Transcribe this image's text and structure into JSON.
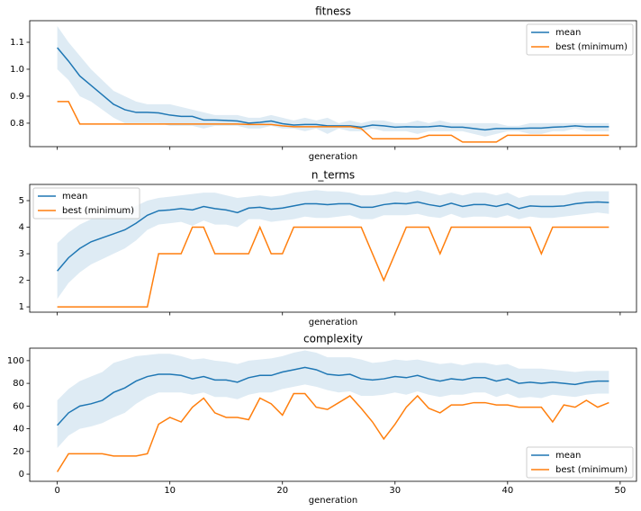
{
  "chart_data": [
    {
      "type": "line",
      "title": "fitness",
      "xlabel": "generation",
      "legend": "upper right",
      "show_xticklabels": false,
      "x": [
        0,
        1,
        2,
        3,
        4,
        5,
        6,
        7,
        8,
        9,
        10,
        11,
        12,
        13,
        14,
        15,
        16,
        17,
        18,
        19,
        20,
        21,
        22,
        23,
        24,
        25,
        26,
        27,
        28,
        29,
        30,
        31,
        32,
        33,
        34,
        35,
        36,
        37,
        38,
        39,
        40,
        41,
        42,
        43,
        44,
        45,
        46,
        47,
        48,
        49
      ],
      "xlim": [
        -2.45,
        51.45
      ],
      "xticks": [
        0,
        10,
        20,
        30,
        40,
        50
      ],
      "ylim": [
        0.713,
        1.18
      ],
      "yticks": [
        0.8,
        0.9,
        {
          "value": 1,
          "label": "1.0"
        },
        1.1
      ],
      "series": [
        {
          "name": "mean",
          "color": "#1f77b4",
          "values": [
            1.08,
            1.03,
            0.975,
            0.94,
            0.905,
            0.87,
            0.85,
            0.84,
            0.84,
            0.838,
            0.83,
            0.825,
            0.825,
            0.812,
            0.812,
            0.81,
            0.808,
            0.8,
            0.803,
            0.808,
            0.798,
            0.793,
            0.795,
            0.795,
            0.79,
            0.79,
            0.79,
            0.785,
            0.793,
            0.79,
            0.785,
            0.787,
            0.786,
            0.787,
            0.79,
            0.785,
            0.785,
            0.78,
            0.775,
            0.78,
            0.78,
            0.78,
            0.782,
            0.782,
            0.785,
            0.787,
            0.79,
            0.787,
            0.787,
            0.787
          ],
          "band": {
            "upper": [
              1.16,
              1.1,
              1.05,
              1.0,
              0.96,
              0.92,
              0.9,
              0.88,
              0.87,
              0.87,
              0.87,
              0.86,
              0.85,
              0.84,
              0.83,
              0.83,
              0.83,
              0.82,
              0.82,
              0.83,
              0.82,
              0.81,
              0.82,
              0.81,
              0.82,
              0.8,
              0.81,
              0.8,
              0.81,
              0.81,
              0.8,
              0.8,
              0.81,
              0.8,
              0.81,
              0.8,
              0.8,
              0.8,
              0.8,
              0.8,
              0.79,
              0.79,
              0.8,
              0.8,
              0.8,
              0.8,
              0.8,
              0.8,
              0.8,
              0.8
            ],
            "lower": [
              1.0,
              0.96,
              0.9,
              0.88,
              0.85,
              0.82,
              0.8,
              0.8,
              0.8,
              0.8,
              0.79,
              0.79,
              0.79,
              0.78,
              0.79,
              0.79,
              0.79,
              0.78,
              0.78,
              0.79,
              0.78,
              0.78,
              0.77,
              0.78,
              0.76,
              0.78,
              0.77,
              0.77,
              0.78,
              0.77,
              0.77,
              0.77,
              0.76,
              0.77,
              0.77,
              0.77,
              0.77,
              0.76,
              0.75,
              0.76,
              0.77,
              0.77,
              0.76,
              0.76,
              0.77,
              0.77,
              0.78,
              0.77,
              0.77,
              0.77
            ]
          }
        },
        {
          "name": "best (minimum)",
          "color": "#ff7f0e",
          "values": [
            0.88,
            0.88,
            0.797,
            0.797,
            0.797,
            0.797,
            0.797,
            0.797,
            0.797,
            0.797,
            0.797,
            0.797,
            0.797,
            0.797,
            0.797,
            0.797,
            0.797,
            0.795,
            0.795,
            0.795,
            0.79,
            0.787,
            0.787,
            0.787,
            0.787,
            0.787,
            0.787,
            0.78,
            0.742,
            0.742,
            0.742,
            0.742,
            0.742,
            0.755,
            0.755,
            0.755,
            0.73,
            0.73,
            0.73,
            0.73,
            0.755,
            0.755,
            0.755,
            0.755,
            0.755,
            0.755,
            0.755,
            0.755,
            0.755,
            0.755
          ]
        }
      ]
    },
    {
      "type": "line",
      "title": "n_terms",
      "xlabel": "generation",
      "legend": "upper left",
      "show_xticklabels": false,
      "x": [
        0,
        1,
        2,
        3,
        4,
        5,
        6,
        7,
        8,
        9,
        10,
        11,
        12,
        13,
        14,
        15,
        16,
        17,
        18,
        19,
        20,
        21,
        22,
        23,
        24,
        25,
        26,
        27,
        28,
        29,
        30,
        31,
        32,
        33,
        34,
        35,
        36,
        37,
        38,
        39,
        40,
        41,
        42,
        43,
        44,
        45,
        46,
        47,
        48,
        49
      ],
      "xlim": [
        -2.45,
        51.45
      ],
      "xticks": [
        0,
        10,
        20,
        30,
        40,
        50
      ],
      "ylim": [
        0.8,
        5.61
      ],
      "yticks": [
        1,
        2,
        3,
        4,
        5
      ],
      "series": [
        {
          "name": "mean",
          "color": "#1f77b4",
          "values": [
            2.35,
            2.85,
            3.2,
            3.45,
            3.6,
            3.75,
            3.9,
            4.15,
            4.45,
            4.62,
            4.65,
            4.7,
            4.65,
            4.78,
            4.7,
            4.65,
            4.55,
            4.72,
            4.75,
            4.68,
            4.72,
            4.8,
            4.88,
            4.88,
            4.85,
            4.88,
            4.88,
            4.75,
            4.75,
            4.85,
            4.9,
            4.88,
            4.95,
            4.85,
            4.78,
            4.9,
            4.78,
            4.85,
            4.85,
            4.78,
            4.88,
            4.7,
            4.8,
            4.78,
            4.78,
            4.8,
            4.88,
            4.93,
            4.95,
            4.93
          ],
          "band": {
            "upper": [
              3.4,
              3.8,
              4.1,
              4.3,
              4.4,
              4.5,
              4.6,
              4.8,
              5.0,
              5.1,
              5.15,
              5.2,
              5.25,
              5.3,
              5.3,
              5.2,
              5.1,
              5.15,
              5.2,
              5.15,
              5.2,
              5.3,
              5.35,
              5.4,
              5.35,
              5.35,
              5.3,
              5.2,
              5.2,
              5.25,
              5.35,
              5.3,
              5.4,
              5.3,
              5.2,
              5.3,
              5.2,
              5.3,
              5.3,
              5.2,
              5.3,
              5.1,
              5.2,
              5.2,
              5.2,
              5.2,
              5.3,
              5.35,
              5.35,
              5.35
            ],
            "lower": [
              1.3,
              1.9,
              2.3,
              2.6,
              2.8,
              3.0,
              3.2,
              3.5,
              3.9,
              4.1,
              4.15,
              4.2,
              4.05,
              4.25,
              4.1,
              4.1,
              4.0,
              4.3,
              4.3,
              4.2,
              4.25,
              4.3,
              4.4,
              4.35,
              4.35,
              4.4,
              4.45,
              4.3,
              4.3,
              4.45,
              4.45,
              4.45,
              4.5,
              4.4,
              4.35,
              4.5,
              4.35,
              4.4,
              4.4,
              4.35,
              4.45,
              4.3,
              4.4,
              4.35,
              4.35,
              4.4,
              4.45,
              4.5,
              4.55,
              4.5
            ]
          }
        },
        {
          "name": "best (minimum)",
          "color": "#ff7f0e",
          "values": [
            1,
            1,
            1,
            1,
            1,
            1,
            1,
            1,
            1,
            3,
            3,
            3,
            4,
            4,
            3,
            3,
            3,
            3,
            4,
            3,
            3,
            4,
            4,
            4,
            4,
            4,
            4,
            4,
            3,
            2,
            3,
            4,
            4,
            4,
            3,
            4,
            4,
            4,
            4,
            4,
            4,
            4,
            4,
            3,
            4,
            4,
            4,
            4,
            4,
            4
          ]
        }
      ]
    },
    {
      "type": "line",
      "title": "complexity",
      "xlabel": "generation",
      "legend": "lower right",
      "show_xticklabels": true,
      "x": [
        0,
        1,
        2,
        3,
        4,
        5,
        6,
        7,
        8,
        9,
        10,
        11,
        12,
        13,
        14,
        15,
        16,
        17,
        18,
        19,
        20,
        21,
        22,
        23,
        24,
        25,
        26,
        27,
        28,
        29,
        30,
        31,
        32,
        33,
        34,
        35,
        36,
        37,
        38,
        39,
        40,
        41,
        42,
        43,
        44,
        45,
        46,
        47,
        48,
        49
      ],
      "xlim": [
        -2.45,
        51.45
      ],
      "xticks": [
        0,
        10,
        20,
        30,
        40,
        50
      ],
      "ylim": [
        -6.3,
        111
      ],
      "yticks": [
        0,
        20,
        40,
        60,
        80,
        100
      ],
      "series": [
        {
          "name": "mean",
          "color": "#1f77b4",
          "values": [
            43,
            54,
            60,
            62,
            65,
            72,
            76,
            82,
            86,
            88,
            88,
            87,
            84,
            86,
            83,
            83,
            81,
            85,
            87,
            87,
            90,
            92,
            94,
            92,
            88,
            87,
            88,
            84,
            83,
            84,
            86,
            85,
            87,
            84,
            82,
            84,
            83,
            85,
            85,
            82,
            84,
            80,
            81,
            80,
            81,
            80,
            79,
            81,
            82,
            82
          ],
          "band": {
            "upper": [
              65,
              75,
              82,
              86,
              90,
              98,
              101,
              104,
              105,
              106,
              106,
              104,
              101,
              102,
              100,
              99,
              97,
              100,
              101,
              102,
              104,
              107,
              109,
              107,
              103,
              103,
              103,
              101,
              98,
              99,
              101,
              100,
              101,
              99,
              97,
              98,
              96,
              98,
              98,
              96,
              97,
              93,
              93,
              93,
              92,
              91,
              90,
              91,
              91,
              91
            ],
            "lower": [
              23,
              34,
              40,
              42,
              45,
              50,
              54,
              62,
              68,
              72,
              72,
              72,
              70,
              72,
              68,
              68,
              66,
              70,
              72,
              72,
              75,
              77,
              79,
              77,
              74,
              72,
              73,
              69,
              69,
              70,
              72,
              70,
              73,
              70,
              68,
              70,
              70,
              72,
              72,
              68,
              71,
              67,
              68,
              67,
              70,
              69,
              68,
              70,
              71,
              71
            ]
          }
        },
        {
          "name": "best (minimum)",
          "color": "#ff7f0e",
          "values": [
            2,
            18,
            18,
            18,
            18,
            16,
            16,
            16,
            18,
            44,
            50,
            46,
            59,
            67,
            54,
            50,
            50,
            48,
            67,
            62,
            52,
            71,
            71,
            59,
            57,
            63,
            69,
            58,
            46,
            31,
            44,
            59,
            69,
            58,
            54,
            61,
            61,
            63,
            63,
            61,
            61,
            59,
            59,
            59,
            46,
            61,
            59,
            65,
            59,
            63
          ]
        }
      ]
    }
  ]
}
